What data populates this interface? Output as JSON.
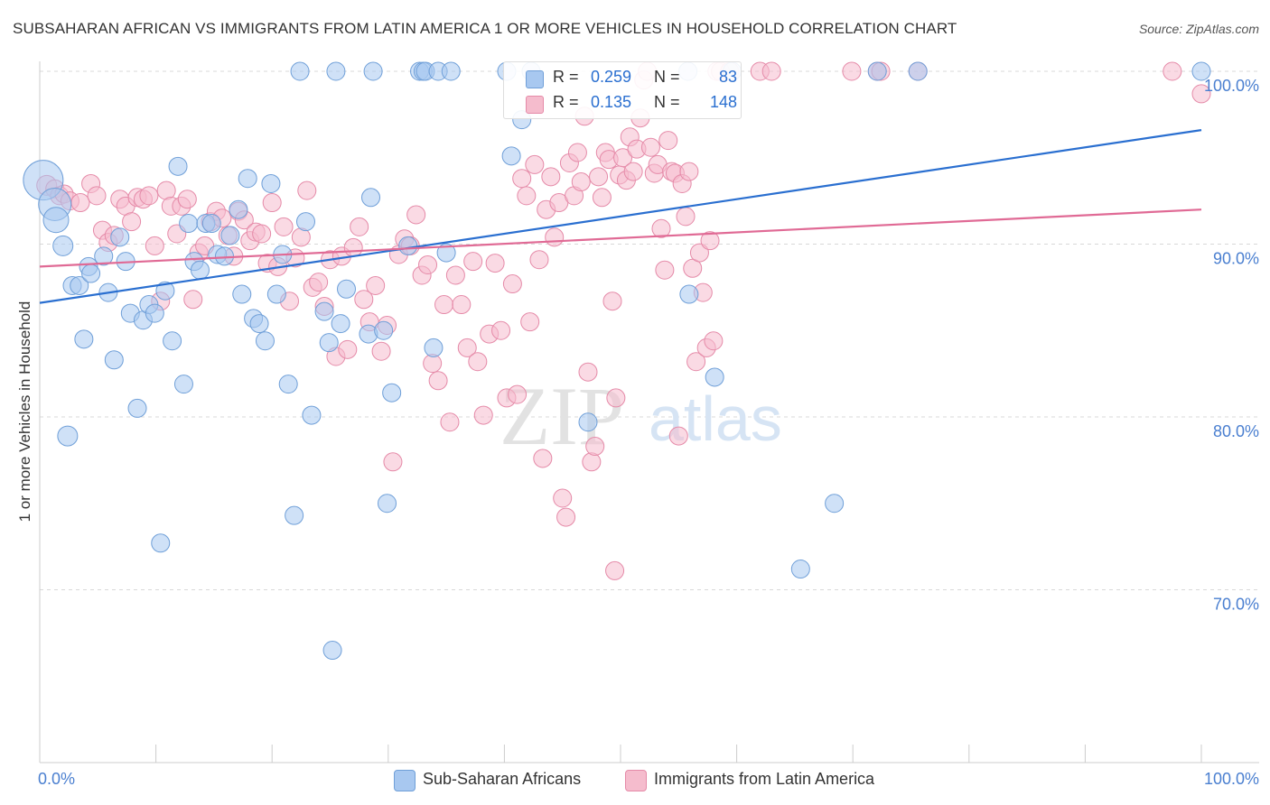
{
  "header": {
    "title": "SUBSAHARAN AFRICAN VS IMMIGRANTS FROM LATIN AMERICA 1 OR MORE VEHICLES IN HOUSEHOLD CORRELATION CHART",
    "source": "Source: ZipAtlas.com"
  },
  "watermark": {
    "zip": "ZIP",
    "atlas": "atlas"
  },
  "legend": {
    "rows": [
      {
        "r_label": "R =",
        "r_value": "0.259",
        "n_label": "N =",
        "n_value": "83"
      },
      {
        "r_label": "R =",
        "r_value": "0.135",
        "n_label": "N =",
        "n_value": "148"
      }
    ]
  },
  "bottom_legend": {
    "series1": "Sub-Saharan Africans",
    "series2": "Immigrants from Latin America"
  },
  "colors": {
    "blue_fill": "#a8c8f0",
    "blue_stroke": "#6f9fd8",
    "blue_line": "#2a6fd0",
    "pink_fill": "#f5bccd",
    "pink_stroke": "#e58aa8",
    "pink_line": "#e06a95",
    "tick_label": "#4a7fd0",
    "grid": "#d8d8d8"
  },
  "chart_data": {
    "type": "scatter",
    "title": "SUBSAHARAN AFRICAN VS IMMIGRANTS FROM LATIN AMERICA 1 OR MORE VEHICLES IN HOUSEHOLD CORRELATION CHART",
    "xlabel": "",
    "ylabel": "1 or more Vehicles in Household",
    "xlim": [
      0,
      100
    ],
    "ylim": [
      60.0,
      102.0
    ],
    "x_tick_labels": [
      "0.0%",
      "100.0%"
    ],
    "y_ticks": [
      70,
      80,
      90,
      100
    ],
    "y_tick_labels": [
      "70.0%",
      "80.0%",
      "90.0%",
      "100.0%"
    ],
    "grid": true,
    "legend_position": "top-center",
    "series": [
      {
        "name": "Sub-Saharan Africans",
        "R": 0.259,
        "N": 83,
        "trend": {
          "x": [
            0,
            100
          ],
          "y": [
            86.6,
            96.6
          ]
        },
        "points": [
          [
            0.3,
            93.7,
            22
          ],
          [
            1.3,
            92.3,
            18
          ],
          [
            1.4,
            91.4,
            14
          ],
          [
            2.0,
            89.9,
            11
          ],
          [
            2.4,
            78.9,
            11
          ],
          [
            2.8,
            87.6,
            10
          ],
          [
            3.4,
            87.6,
            10
          ],
          [
            3.8,
            84.5,
            10
          ],
          [
            4.2,
            88.7,
            10
          ],
          [
            4.4,
            88.3,
            10
          ],
          [
            5.5,
            89.3,
            10
          ],
          [
            5.9,
            87.2,
            10
          ],
          [
            6.4,
            83.3,
            10
          ],
          [
            6.9,
            90.4,
            10
          ],
          [
            7.4,
            89.0,
            10
          ],
          [
            7.8,
            86.0,
            10
          ],
          [
            8.4,
            80.5,
            10
          ],
          [
            8.9,
            85.6,
            10
          ],
          [
            9.4,
            86.5,
            10
          ],
          [
            9.9,
            86.0,
            10
          ],
          [
            10.4,
            72.7,
            10
          ],
          [
            10.8,
            87.3,
            10
          ],
          [
            11.4,
            84.4,
            10
          ],
          [
            11.9,
            94.5,
            10
          ],
          [
            12.4,
            81.9,
            10
          ],
          [
            12.8,
            91.2,
            10
          ],
          [
            13.3,
            89.0,
            10
          ],
          [
            13.8,
            88.5,
            10
          ],
          [
            14.3,
            91.2,
            10
          ],
          [
            14.8,
            91.2,
            10
          ],
          [
            15.3,
            89.4,
            10
          ],
          [
            15.9,
            89.3,
            10
          ],
          [
            16.4,
            90.5,
            10
          ],
          [
            17.1,
            92.0,
            10
          ],
          [
            17.4,
            87.1,
            10
          ],
          [
            17.9,
            93.8,
            10
          ],
          [
            18.4,
            85.7,
            10
          ],
          [
            18.9,
            85.4,
            10
          ],
          [
            19.4,
            84.4,
            10
          ],
          [
            19.9,
            93.5,
            10
          ],
          [
            20.4,
            87.1,
            10
          ],
          [
            20.9,
            89.4,
            10
          ],
          [
            21.4,
            81.9,
            10
          ],
          [
            21.9,
            74.3,
            10
          ],
          [
            22.4,
            100.0,
            10
          ],
          [
            22.9,
            91.3,
            10
          ],
          [
            23.4,
            80.1,
            10
          ],
          [
            24.5,
            86.1,
            10
          ],
          [
            24.9,
            84.3,
            10
          ],
          [
            25.2,
            66.5,
            10
          ],
          [
            25.5,
            100.0,
            10
          ],
          [
            25.9,
            85.4,
            10
          ],
          [
            26.4,
            87.4,
            10
          ],
          [
            28.3,
            84.8,
            10
          ],
          [
            28.5,
            92.7,
            10
          ],
          [
            28.7,
            100.0,
            10
          ],
          [
            29.6,
            85.0,
            10
          ],
          [
            29.9,
            75.0,
            10
          ],
          [
            30.3,
            81.4,
            10
          ],
          [
            31.7,
            89.9,
            10
          ],
          [
            32.7,
            100.0,
            10
          ],
          [
            33.0,
            100.0,
            10
          ],
          [
            33.2,
            100.0,
            10
          ],
          [
            33.9,
            84.0,
            10
          ],
          [
            34.3,
            100.0,
            10
          ],
          [
            35.0,
            89.5,
            10
          ],
          [
            35.4,
            100.0,
            10
          ],
          [
            40.2,
            100.0,
            10
          ],
          [
            40.6,
            95.1,
            10
          ],
          [
            41.5,
            97.2,
            10
          ],
          [
            42.3,
            100.0,
            10
          ],
          [
            47.2,
            79.7,
            10
          ],
          [
            55.8,
            100.0,
            10
          ],
          [
            55.9,
            87.1,
            10
          ],
          [
            58.1,
            82.3,
            10
          ],
          [
            59.6,
            100.0,
            10
          ],
          [
            65.5,
            71.2,
            10
          ],
          [
            68.4,
            75.0,
            10
          ],
          [
            72.1,
            100.0,
            10
          ],
          [
            75.6,
            100.0,
            10
          ],
          [
            100.0,
            100.0,
            10
          ]
        ]
      },
      {
        "name": "Immigrants from Latin America",
        "R": 0.135,
        "N": 148,
        "trend": {
          "x": [
            0,
            100
          ],
          "y": [
            88.7,
            92.0
          ]
        },
        "points": [
          [
            0.6,
            93.4,
            11
          ],
          [
            1.3,
            93.2,
            10
          ],
          [
            1.7,
            92.8,
            10
          ],
          [
            2.1,
            92.9,
            10
          ],
          [
            2.6,
            92.5,
            10
          ],
          [
            3.5,
            92.4,
            10
          ],
          [
            4.4,
            93.5,
            10
          ],
          [
            4.9,
            92.8,
            10
          ],
          [
            5.4,
            90.8,
            10
          ],
          [
            5.9,
            90.1,
            10
          ],
          [
            6.4,
            90.5,
            10
          ],
          [
            6.9,
            92.6,
            10
          ],
          [
            7.4,
            92.2,
            10
          ],
          [
            7.9,
            91.3,
            10
          ],
          [
            8.4,
            92.7,
            10
          ],
          [
            8.9,
            92.6,
            10
          ],
          [
            9.4,
            92.8,
            10
          ],
          [
            9.9,
            89.9,
            10
          ],
          [
            10.4,
            86.7,
            10
          ],
          [
            10.9,
            93.1,
            10
          ],
          [
            11.3,
            92.2,
            10
          ],
          [
            11.8,
            90.6,
            10
          ],
          [
            12.2,
            92.2,
            10
          ],
          [
            12.7,
            92.6,
            10
          ],
          [
            13.2,
            86.8,
            10
          ],
          [
            13.7,
            89.5,
            10
          ],
          [
            14.2,
            89.9,
            10
          ],
          [
            14.7,
            91.3,
            10
          ],
          [
            15.2,
            91.9,
            10
          ],
          [
            15.7,
            91.5,
            10
          ],
          [
            16.2,
            90.5,
            10
          ],
          [
            16.7,
            89.3,
            10
          ],
          [
            17.1,
            91.9,
            10
          ],
          [
            17.6,
            91.4,
            10
          ],
          [
            18.1,
            90.2,
            10
          ],
          [
            18.6,
            90.7,
            10
          ],
          [
            19.1,
            90.6,
            10
          ],
          [
            19.6,
            88.9,
            10
          ],
          [
            20.0,
            92.4,
            10
          ],
          [
            20.5,
            88.7,
            10
          ],
          [
            21.0,
            91.0,
            10
          ],
          [
            21.5,
            86.7,
            10
          ],
          [
            22.0,
            89.2,
            10
          ],
          [
            22.5,
            90.4,
            10
          ],
          [
            23.0,
            93.1,
            10
          ],
          [
            23.5,
            87.5,
            10
          ],
          [
            24.0,
            87.8,
            10
          ],
          [
            24.5,
            86.4,
            10
          ],
          [
            25.0,
            89.1,
            10
          ],
          [
            25.5,
            83.5,
            10
          ],
          [
            26.0,
            89.3,
            10
          ],
          [
            26.5,
            83.9,
            10
          ],
          [
            27.0,
            89.8,
            10
          ],
          [
            27.5,
            91.0,
            10
          ],
          [
            27.9,
            86.8,
            10
          ],
          [
            28.4,
            85.5,
            10
          ],
          [
            28.9,
            87.6,
            10
          ],
          [
            29.4,
            83.8,
            10
          ],
          [
            29.9,
            85.3,
            10
          ],
          [
            30.4,
            77.4,
            10
          ],
          [
            30.9,
            89.4,
            10
          ],
          [
            31.4,
            90.3,
            10
          ],
          [
            31.9,
            89.9,
            10
          ],
          [
            32.4,
            91.7,
            10
          ],
          [
            32.9,
            88.2,
            10
          ],
          [
            33.4,
            88.8,
            10
          ],
          [
            33.8,
            83.1,
            10
          ],
          [
            34.3,
            82.1,
            10
          ],
          [
            34.8,
            86.5,
            10
          ],
          [
            35.3,
            79.7,
            10
          ],
          [
            35.8,
            88.2,
            10
          ],
          [
            36.3,
            86.5,
            10
          ],
          [
            36.8,
            84.0,
            10
          ],
          [
            37.3,
            89.0,
            10
          ],
          [
            37.7,
            83.2,
            10
          ],
          [
            38.2,
            80.1,
            10
          ],
          [
            38.7,
            84.8,
            10
          ],
          [
            39.2,
            88.9,
            10
          ],
          [
            39.7,
            85.0,
            10
          ],
          [
            40.2,
            81.1,
            10
          ],
          [
            40.7,
            87.7,
            10
          ],
          [
            41.1,
            81.3,
            10
          ],
          [
            41.5,
            93.8,
            10
          ],
          [
            41.9,
            92.8,
            10
          ],
          [
            42.2,
            85.5,
            10
          ],
          [
            42.6,
            94.6,
            10
          ],
          [
            43.0,
            89.1,
            10
          ],
          [
            43.3,
            77.6,
            10
          ],
          [
            43.6,
            92.0,
            10
          ],
          [
            44.0,
            93.9,
            10
          ],
          [
            44.3,
            90.4,
            10
          ],
          [
            44.7,
            92.4,
            10
          ],
          [
            45.0,
            75.3,
            10
          ],
          [
            45.3,
            74.2,
            10
          ],
          [
            45.6,
            94.7,
            10
          ],
          [
            46.0,
            92.8,
            10
          ],
          [
            46.3,
            95.3,
            10
          ],
          [
            46.6,
            93.6,
            10
          ],
          [
            46.9,
            97.4,
            10
          ],
          [
            47.2,
            82.6,
            10
          ],
          [
            47.5,
            77.4,
            10
          ],
          [
            47.8,
            78.3,
            10
          ],
          [
            48.1,
            93.9,
            10
          ],
          [
            48.4,
            92.7,
            10
          ],
          [
            48.7,
            95.3,
            10
          ],
          [
            49.0,
            94.9,
            10
          ],
          [
            49.3,
            86.7,
            10
          ],
          [
            49.6,
            81.1,
            10
          ],
          [
            49.9,
            94.0,
            10
          ],
          [
            50.2,
            95.0,
            10
          ],
          [
            50.5,
            93.7,
            10
          ],
          [
            50.8,
            96.2,
            10
          ],
          [
            51.1,
            94.2,
            10
          ],
          [
            51.4,
            95.5,
            10
          ],
          [
            51.7,
            97.3,
            10
          ],
          [
            52.0,
            99.5,
            10
          ],
          [
            52.3,
            100.0,
            10
          ],
          [
            52.6,
            95.6,
            10
          ],
          [
            52.9,
            94.1,
            10
          ],
          [
            53.2,
            94.6,
            10
          ],
          [
            53.5,
            90.9,
            10
          ],
          [
            53.8,
            88.5,
            10
          ],
          [
            54.1,
            96.0,
            10
          ],
          [
            54.4,
            94.2,
            10
          ],
          [
            54.7,
            94.1,
            10
          ],
          [
            55.0,
            78.9,
            10
          ],
          [
            55.3,
            93.5,
            10
          ],
          [
            55.6,
            91.6,
            10
          ],
          [
            55.9,
            94.2,
            10
          ],
          [
            56.2,
            88.6,
            10
          ],
          [
            56.5,
            83.2,
            10
          ],
          [
            56.8,
            89.5,
            10
          ],
          [
            57.1,
            87.2,
            10
          ],
          [
            57.4,
            84.0,
            10
          ],
          [
            57.7,
            90.2,
            10
          ],
          [
            58.0,
            84.4,
            10
          ],
          [
            58.3,
            100.0,
            10
          ],
          [
            58.6,
            100.0,
            10
          ],
          [
            59.4,
            100.0,
            10
          ],
          [
            62.0,
            100.0,
            10
          ],
          [
            63.0,
            100.0,
            10
          ],
          [
            69.9,
            100.0,
            10
          ],
          [
            72.1,
            100.0,
            10
          ],
          [
            72.4,
            100.0,
            10
          ],
          [
            75.6,
            100.0,
            10
          ],
          [
            97.5,
            100.0,
            10
          ],
          [
            100.0,
            98.7,
            10
          ],
          [
            49.5,
            71.1,
            10
          ]
        ]
      }
    ]
  }
}
